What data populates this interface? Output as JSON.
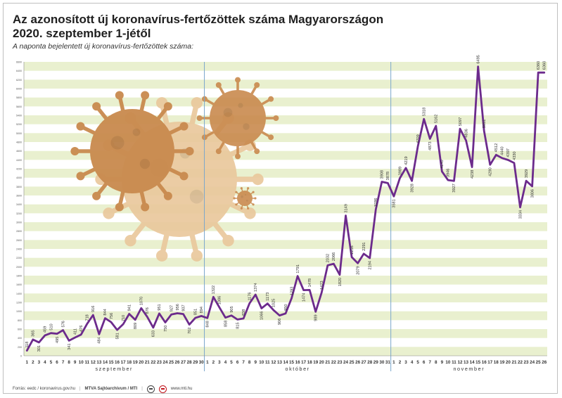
{
  "header": {
    "title_line1": "Az azonosított új koronavírus-fertőzöttek száma Magyarországon",
    "title_line2": "2020. szeptember 1-jétől",
    "subtitle": "A naponta bejelentett új koronavírus-fertőzöttek száma:"
  },
  "footer": {
    "source": "Forrás: eedc / koronavirus.gov.hu",
    "agency": "MTVA Sajtóarchívum / MTI",
    "website": "www.mti.hu"
  },
  "colors": {
    "line": "#6c2b8c",
    "stripe": "#e9f0cf",
    "divider": "#7aa6cc",
    "virus_dark": "#c98a4e",
    "virus_light": "#e9c79b"
  },
  "icons": [
    "virus-illustration",
    "mtva-logo-icon",
    "mti-logo-icon"
  ],
  "chart_data": {
    "type": "line",
    "ylim": [
      0,
      6600
    ],
    "ytick_step": 200,
    "months": [
      "szeptember",
      "október",
      "november"
    ],
    "series": [
      {
        "points": [
          {
            "x": "1",
            "month": "szeptember",
            "y": 118
          },
          {
            "x": "2",
            "month": "szeptember",
            "y": 365
          },
          {
            "x": "3",
            "month": "szeptember",
            "y": 301
          },
          {
            "x": "4",
            "month": "szeptember",
            "y": 459
          },
          {
            "x": "5",
            "month": "szeptember",
            "y": 510
          },
          {
            "x": "6",
            "month": "szeptember",
            "y": 495
          },
          {
            "x": "7",
            "month": "szeptember",
            "y": 576
          },
          {
            "x": "8",
            "month": "szeptember",
            "y": 341
          },
          {
            "x": "9",
            "month": "szeptember",
            "y": 411
          },
          {
            "x": "10",
            "month": "szeptember",
            "y": 476
          },
          {
            "x": "11",
            "month": "szeptember",
            "y": 718
          },
          {
            "x": "12",
            "month": "szeptember",
            "y": 916
          },
          {
            "x": "13",
            "month": "szeptember",
            "y": 484
          },
          {
            "x": "14",
            "month": "szeptember",
            "y": 844
          },
          {
            "x": "15",
            "month": "szeptember",
            "y": 756
          },
          {
            "x": "16",
            "month": "szeptember",
            "y": 581
          },
          {
            "x": "17",
            "month": "szeptember",
            "y": 710
          },
          {
            "x": "18",
            "month": "szeptember",
            "y": 941
          },
          {
            "x": "19",
            "month": "szeptember",
            "y": 809
          },
          {
            "x": "20",
            "month": "szeptember",
            "y": 1070
          },
          {
            "x": "21",
            "month": "szeptember",
            "y": 876
          },
          {
            "x": "22",
            "month": "szeptember",
            "y": 633
          },
          {
            "x": "23",
            "month": "szeptember",
            "y": 951
          },
          {
            "x": "24",
            "month": "szeptember",
            "y": 750
          },
          {
            "x": "25",
            "month": "szeptember",
            "y": 927
          },
          {
            "x": "26",
            "month": "szeptember",
            "y": 956
          },
          {
            "x": "27",
            "month": "szeptember",
            "y": 937
          },
          {
            "x": "28",
            "month": "szeptember",
            "y": 702
          },
          {
            "x": "29",
            "month": "szeptember",
            "y": 851
          },
          {
            "x": "30",
            "month": "szeptember",
            "y": 894
          },
          {
            "x": "1",
            "month": "október",
            "y": 848
          },
          {
            "x": "2",
            "month": "október",
            "y": 1322
          },
          {
            "x": "3",
            "month": "október",
            "y": 1086
          },
          {
            "x": "4",
            "month": "október",
            "y": 858
          },
          {
            "x": "5",
            "month": "október",
            "y": 905
          },
          {
            "x": "6",
            "month": "október",
            "y": 815
          },
          {
            "x": "7",
            "month": "október",
            "y": 838
          },
          {
            "x": "8",
            "month": "október",
            "y": 1176
          },
          {
            "x": "9",
            "month": "október",
            "y": 1374
          },
          {
            "x": "10",
            "month": "október",
            "y": 1066
          },
          {
            "x": "11",
            "month": "október",
            "y": 1173
          },
          {
            "x": "12",
            "month": "október",
            "y": 1025
          },
          {
            "x": "13",
            "month": "október",
            "y": 906
          },
          {
            "x": "14",
            "month": "október",
            "y": 950
          },
          {
            "x": "15",
            "month": "október",
            "y": 1293
          },
          {
            "x": "16",
            "month": "október",
            "y": 1791
          },
          {
            "x": "17",
            "month": "október",
            "y": 1474
          },
          {
            "x": "18",
            "month": "október",
            "y": 1478
          },
          {
            "x": "19",
            "month": "október",
            "y": 989
          },
          {
            "x": "20",
            "month": "október",
            "y": 1423
          },
          {
            "x": "21",
            "month": "október",
            "y": 2032
          },
          {
            "x": "22",
            "month": "október",
            "y": 2066
          },
          {
            "x": "23",
            "month": "október",
            "y": 1820
          },
          {
            "x": "24",
            "month": "október",
            "y": 3149
          },
          {
            "x": "25",
            "month": "október",
            "y": 2216
          },
          {
            "x": "26",
            "month": "október",
            "y": 2079
          },
          {
            "x": "27",
            "month": "október",
            "y": 2291
          },
          {
            "x": "28",
            "month": "október",
            "y": 2194
          },
          {
            "x": "29",
            "month": "október",
            "y": 3286
          },
          {
            "x": "30",
            "month": "október",
            "y": 3908
          },
          {
            "x": "31",
            "month": "október",
            "y": 3878
          },
          {
            "x": "1",
            "month": "november",
            "y": 3581
          },
          {
            "x": "2",
            "month": "november",
            "y": 3989
          },
          {
            "x": "3",
            "month": "november",
            "y": 4219
          },
          {
            "x": "4",
            "month": "november",
            "y": 3928
          },
          {
            "x": "5",
            "month": "november",
            "y": 4709
          },
          {
            "x": "6",
            "month": "november",
            "y": 5318
          },
          {
            "x": "7",
            "month": "november",
            "y": 4873
          },
          {
            "x": "8",
            "month": "november",
            "y": 5162
          },
          {
            "x": "9",
            "month": "november",
            "y": 4140
          },
          {
            "x": "10",
            "month": "november",
            "y": 3946
          },
          {
            "x": "11",
            "month": "november",
            "y": 3927
          },
          {
            "x": "12",
            "month": "november",
            "y": 5097
          },
          {
            "x": "13",
            "month": "november",
            "y": 4836
          },
          {
            "x": "14",
            "month": "november",
            "y": 4238
          },
          {
            "x": "15",
            "month": "november",
            "y": 6495
          },
          {
            "x": "16",
            "month": "november",
            "y": 5051
          },
          {
            "x": "17",
            "month": "november",
            "y": 4290
          },
          {
            "x": "18",
            "month": "november",
            "y": 4512
          },
          {
            "x": "19",
            "month": "november",
            "y": 4440
          },
          {
            "x": "20",
            "month": "november",
            "y": 4397
          },
          {
            "x": "21",
            "month": "november",
            "y": 4330
          },
          {
            "x": "22",
            "month": "november",
            "y": 3334
          },
          {
            "x": "23",
            "month": "november",
            "y": 3929
          },
          {
            "x": "24",
            "month": "november",
            "y": 3806
          },
          {
            "x": "25",
            "month": "november",
            "y": 6360
          },
          {
            "x": "26",
            "month": "november",
            "y": 6360
          }
        ]
      }
    ]
  }
}
